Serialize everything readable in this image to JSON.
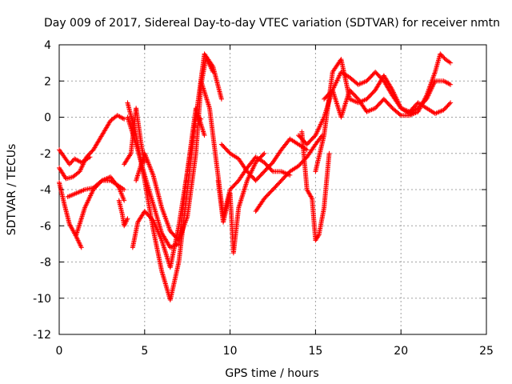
{
  "chart_data": {
    "type": "scatter",
    "title": "Day 009 of 2017, Sidereal Day-to-day VTEC variation (SDTVAR) for receiver nmtn",
    "xlabel": "GPS time / hours",
    "ylabel": "SDTVAR / TECUs",
    "xlim": [
      0,
      25
    ],
    "ylim": [
      -12,
      4
    ],
    "xticks": [
      0,
      5,
      10,
      15,
      20,
      25
    ],
    "yticks": [
      -12,
      -10,
      -8,
      -6,
      -4,
      -2,
      0,
      2,
      4
    ],
    "xtick_labels": [
      "0",
      "5",
      "10",
      "15",
      "20",
      "25"
    ],
    "ytick_labels": [
      "-12",
      "-10",
      "-8",
      "-6",
      "-4",
      "-2",
      "0",
      "2",
      "4"
    ],
    "grid": true,
    "marker": "+",
    "color": "#ff0000",
    "series": [
      {
        "x": [
          0.0,
          0.4,
          0.8,
          1.2,
          1.6,
          2.0,
          2.5,
          3.0,
          3.4,
          3.8
        ],
        "y": [
          -2.8,
          -3.4,
          -3.3,
          -3.0,
          -2.2,
          -1.8,
          -1.0,
          -0.2,
          0.1,
          -0.1
        ]
      },
      {
        "x": [
          0.0,
          0.3,
          0.6,
          0.9,
          1.3,
          1.8
        ],
        "y": [
          -1.8,
          -2.2,
          -2.6,
          -2.3,
          -2.5,
          -2.2
        ]
      },
      {
        "x": [
          0.0,
          0.3,
          0.6,
          1.0,
          1.3
        ],
        "y": [
          -3.6,
          -4.8,
          -5.9,
          -6.6,
          -7.2
        ]
      },
      {
        "x": [
          0.5,
          1.0,
          1.5,
          2.0,
          2.5,
          3.0,
          3.5,
          3.8
        ],
        "y": [
          -4.4,
          -4.2,
          -4.0,
          -3.9,
          -3.5,
          -3.3,
          -3.9,
          -4.6
        ]
      },
      {
        "x": [
          1.0,
          1.5,
          2.0,
          2.5,
          3.0,
          3.5,
          3.8
        ],
        "y": [
          -6.5,
          -5.0,
          -4.0,
          -3.5,
          -3.5,
          -3.8,
          -4.0
        ]
      },
      {
        "x": [
          3.5,
          3.7,
          3.8,
          4.0
        ],
        "y": [
          -4.6,
          -5.4,
          -6.0,
          -5.6
        ]
      },
      {
        "x": [
          3.8,
          4.2,
          4.5,
          4.8,
          5.0
        ],
        "y": [
          -2.6,
          -2.0,
          0.5,
          -1.5,
          -2.5
        ]
      },
      {
        "x": [
          4.0,
          4.5,
          5.0,
          5.5,
          6.0,
          6.5,
          7.0,
          7.5,
          8.0,
          8.3
        ],
        "y": [
          0.8,
          -1.0,
          -3.5,
          -6.2,
          -8.5,
          -10.1,
          -8.0,
          -4.0,
          0.0,
          -0.1
        ]
      },
      {
        "x": [
          4.0,
          4.5,
          5.0,
          5.5,
          6.0,
          6.5,
          7.0,
          7.5,
          8.0,
          8.5
        ],
        "y": [
          0.0,
          -1.5,
          -3.2,
          -4.8,
          -6.4,
          -7.2,
          -7.0,
          -3.0,
          0.5,
          -1.0
        ]
      },
      {
        "x": [
          4.5,
          5.0,
          5.5,
          6.0,
          6.5,
          7.0,
          7.5,
          8.0,
          8.3,
          8.6,
          9.0
        ],
        "y": [
          -3.5,
          -2.0,
          -3.2,
          -5.0,
          -6.3,
          -6.8,
          -5.5,
          -2.0,
          1.8,
          3.3,
          2.5
        ]
      },
      {
        "x": [
          4.3,
          4.6,
          5.0,
          5.5,
          6.0,
          6.5,
          7.0,
          7.5,
          8.0,
          8.5,
          9.0,
          9.5
        ],
        "y": [
          -7.2,
          -5.8,
          -5.2,
          -5.7,
          -6.8,
          -8.3,
          -6.0,
          -3.0,
          0.0,
          3.5,
          2.8,
          1.0
        ]
      },
      {
        "x": [
          8.3,
          8.8,
          9.2,
          9.6,
          10.0,
          10.5,
          11.0,
          11.5,
          12.0,
          12.5,
          13.0,
          13.5
        ],
        "y": [
          2.0,
          0.5,
          -2.5,
          -5.5,
          -4.0,
          -3.5,
          -2.8,
          -2.2,
          -2.5,
          -3.0,
          -3.0,
          -3.2
        ]
      },
      {
        "x": [
          9.3,
          9.6,
          10.0,
          10.2,
          10.5,
          11.0,
          11.5,
          12.0
        ],
        "y": [
          -3.5,
          -5.8,
          -4.2,
          -7.5,
          -5.0,
          -3.5,
          -2.5,
          -2.0
        ]
      },
      {
        "x": [
          9.5,
          10.0,
          10.5,
          11.0,
          11.5,
          12.0,
          12.5,
          13.0,
          13.5,
          14.0,
          14.5
        ],
        "y": [
          -1.5,
          -2.0,
          -2.3,
          -3.0,
          -3.5,
          -3.0,
          -2.5,
          -1.8,
          -1.2,
          -1.5,
          -1.8
        ]
      },
      {
        "x": [
          11.5,
          12.0,
          12.5,
          13.0,
          13.5,
          14.0,
          14.5,
          15.0,
          15.4
        ],
        "y": [
          -5.2,
          -4.5,
          -4.0,
          -3.5,
          -3.0,
          -2.7,
          -2.2,
          -1.5,
          -1.0
        ]
      },
      {
        "x": [
          14.2,
          14.5,
          14.8,
          15.0,
          15.2,
          15.5,
          15.8
        ],
        "y": [
          -0.8,
          -4.0,
          -4.5,
          -6.8,
          -6.5,
          -5.0,
          -2.0
        ]
      },
      {
        "x": [
          14.0,
          14.5,
          15.0,
          15.5,
          16.0,
          16.5,
          17.0,
          17.5,
          18.0,
          18.5,
          19.0,
          19.5,
          20.0,
          20.5,
          21.0,
          21.5,
          22.0,
          22.5,
          22.9
        ],
        "y": [
          -1.0,
          -1.5,
          -1.0,
          0.0,
          1.5,
          2.5,
          2.2,
          1.8,
          2.0,
          2.5,
          2.0,
          1.2,
          0.5,
          0.3,
          0.5,
          1.0,
          2.0,
          2.0,
          1.8
        ]
      },
      {
        "x": [
          15.0,
          15.5,
          16.0,
          16.5,
          17.0,
          17.5,
          18.0,
          18.5,
          19.0,
          19.5,
          20.0,
          20.5,
          21.0
        ],
        "y": [
          -3.0,
          -1.0,
          2.5,
          3.2,
          1.0,
          0.8,
          1.0,
          1.5,
          2.3,
          1.5,
          0.5,
          0.2,
          0.5
        ]
      },
      {
        "x": [
          15.5,
          16.0,
          16.5,
          17.0,
          17.5,
          18.0,
          18.5,
          19.0,
          19.5,
          20.0,
          20.5,
          21.0,
          21.5,
          22.0,
          22.3,
          22.6,
          22.9
        ],
        "y": [
          1.0,
          1.5,
          0.0,
          1.5,
          1.0,
          0.3,
          0.5,
          1.0,
          0.5,
          0.1,
          0.1,
          0.3,
          1.2,
          2.5,
          3.5,
          3.2,
          3.0
        ]
      },
      {
        "x": [
          20.5,
          21.0,
          21.5,
          22.0,
          22.5,
          22.9
        ],
        "y": [
          0.3,
          0.8,
          0.5,
          0.2,
          0.4,
          0.8
        ]
      }
    ]
  }
}
